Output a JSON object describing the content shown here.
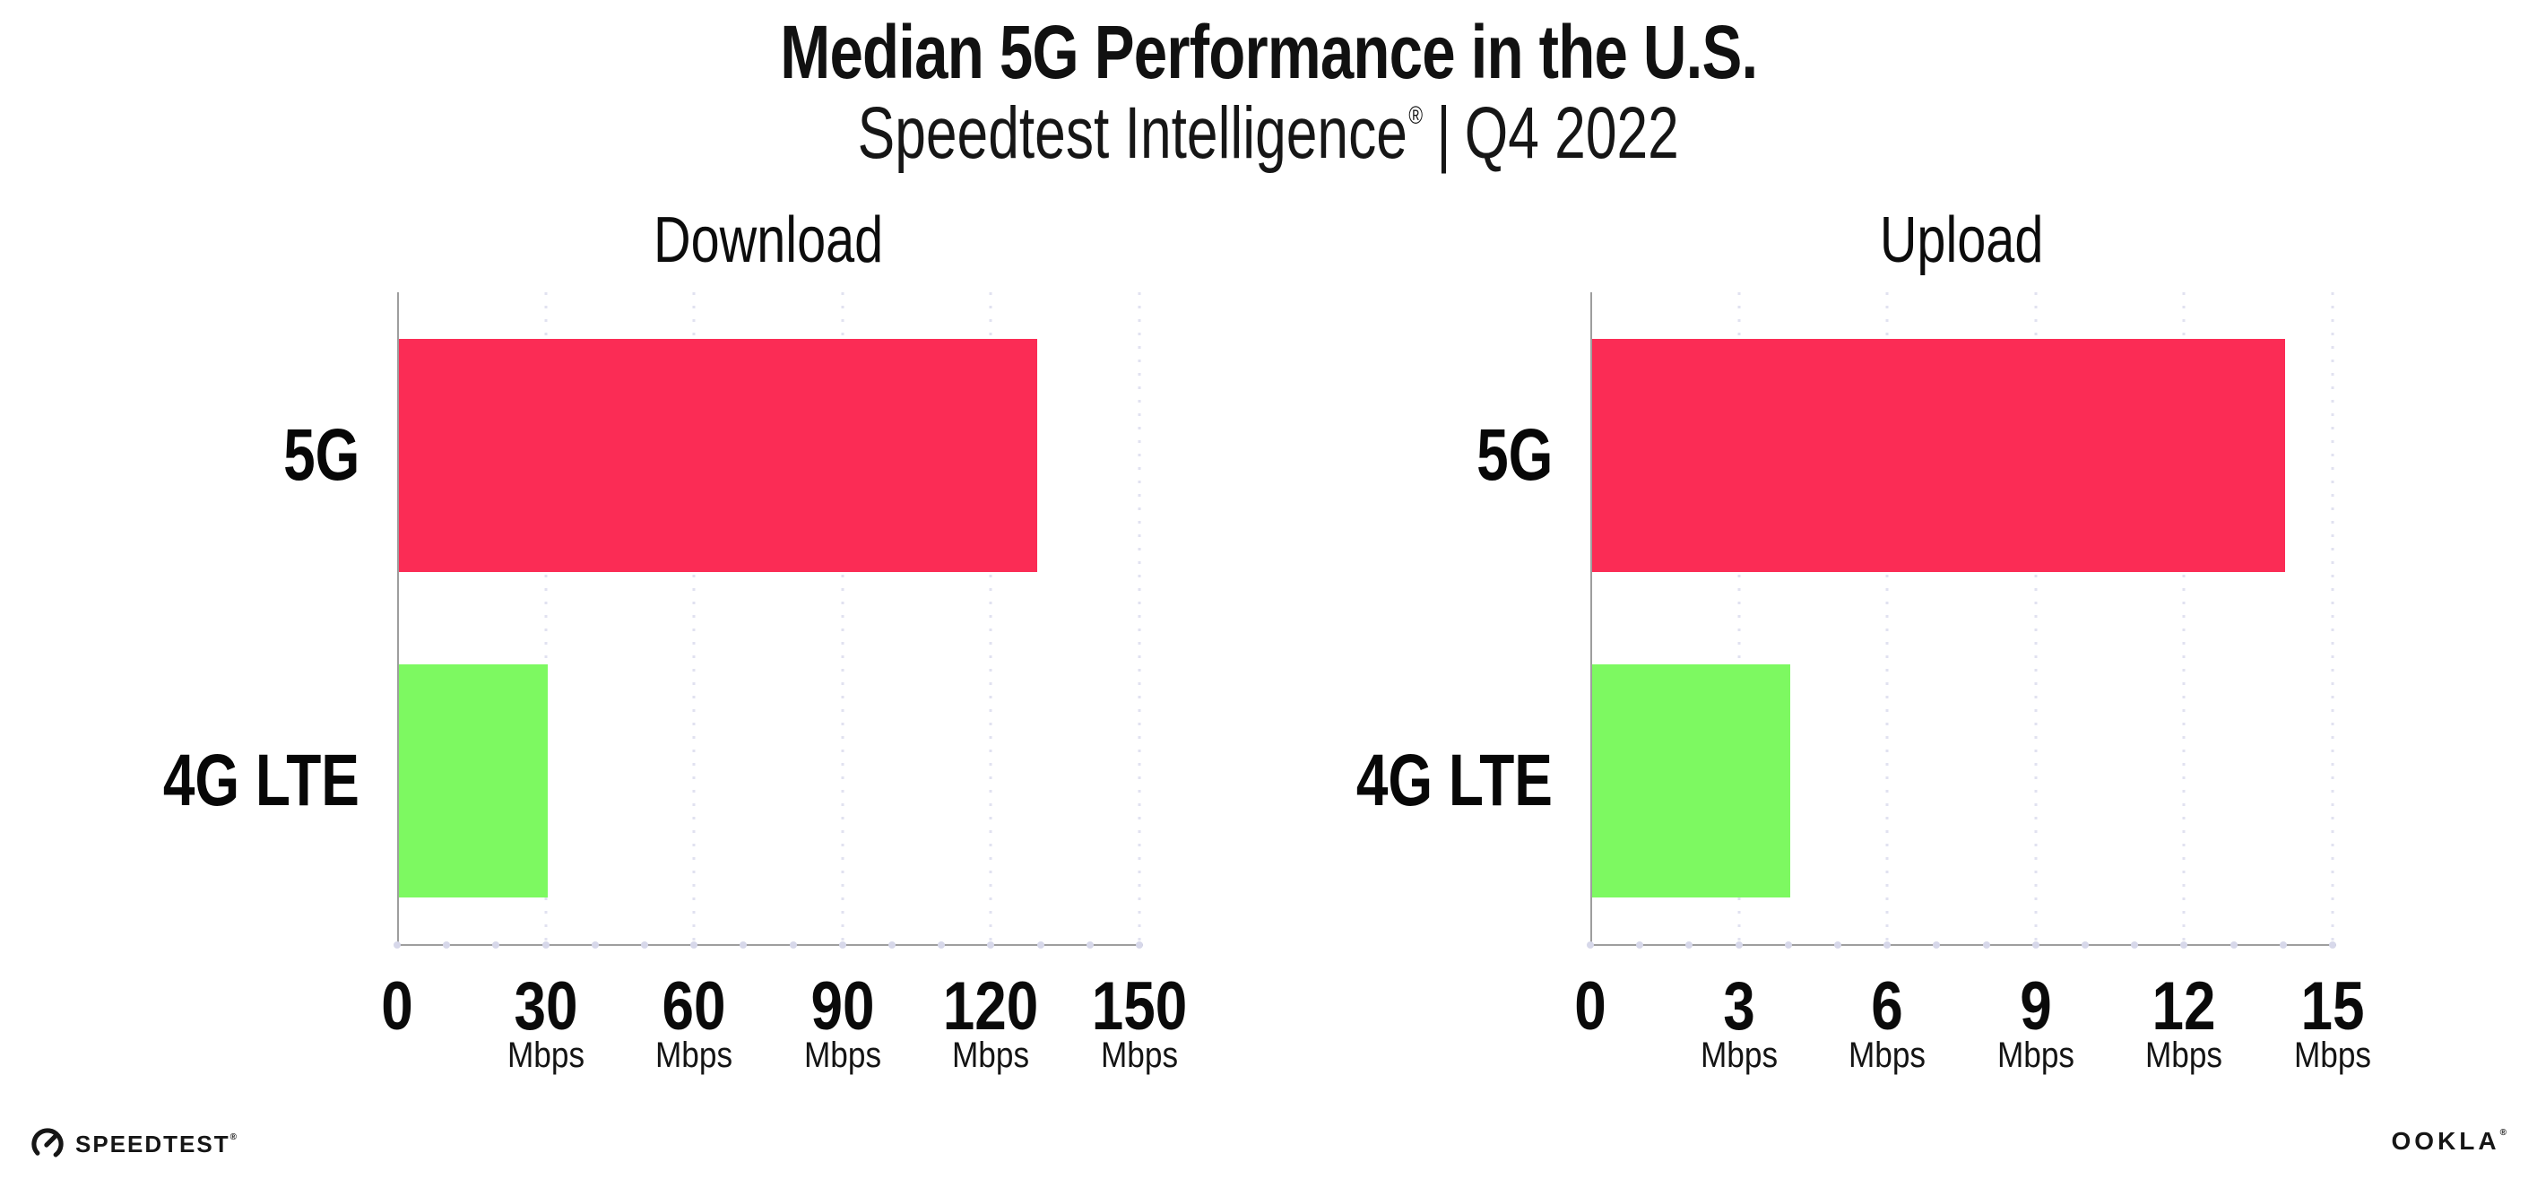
{
  "header": {
    "title": "Median 5G Performance in the U.S.",
    "subtitle": {
      "brand": "Speedtest Intelligence",
      "registered": "®",
      "divider": "|",
      "period": "Q4 2022"
    }
  },
  "chart_data": [
    {
      "type": "bar",
      "orientation": "horizontal",
      "title": "Download",
      "categories": [
        "5G",
        "4G LTE"
      ],
      "values": [
        129,
        30
      ],
      "unit": "Mbps",
      "xlim": [
        0,
        150
      ],
      "xticks": [
        0,
        30,
        60,
        90,
        120,
        150
      ],
      "bar_colors": [
        "#FB2C55",
        "#7DF961"
      ],
      "grid": true,
      "legend": false
    },
    {
      "type": "bar",
      "orientation": "horizontal",
      "title": "Upload",
      "categories": [
        "5G",
        "4G LTE"
      ],
      "values": [
        14,
        4
      ],
      "unit": "Mbps",
      "xlim": [
        0,
        15
      ],
      "xticks": [
        0,
        3,
        6,
        9,
        12,
        15
      ],
      "bar_colors": [
        "#FB2C55",
        "#7DF961"
      ],
      "grid": true,
      "legend": false
    }
  ],
  "footer": {
    "speedtest": {
      "label": "SPEEDTEST",
      "registered": "®",
      "icon": "speedtest-gauge-icon"
    },
    "ookla": {
      "label": "OOKLA",
      "registered": "®"
    }
  },
  "colors": {
    "bar_5g": "#FB2C55",
    "bar_4g_lte": "#7DF961",
    "axis": "#9e9e9e",
    "gridline": "#e1e2f0",
    "text": "#111111"
  }
}
